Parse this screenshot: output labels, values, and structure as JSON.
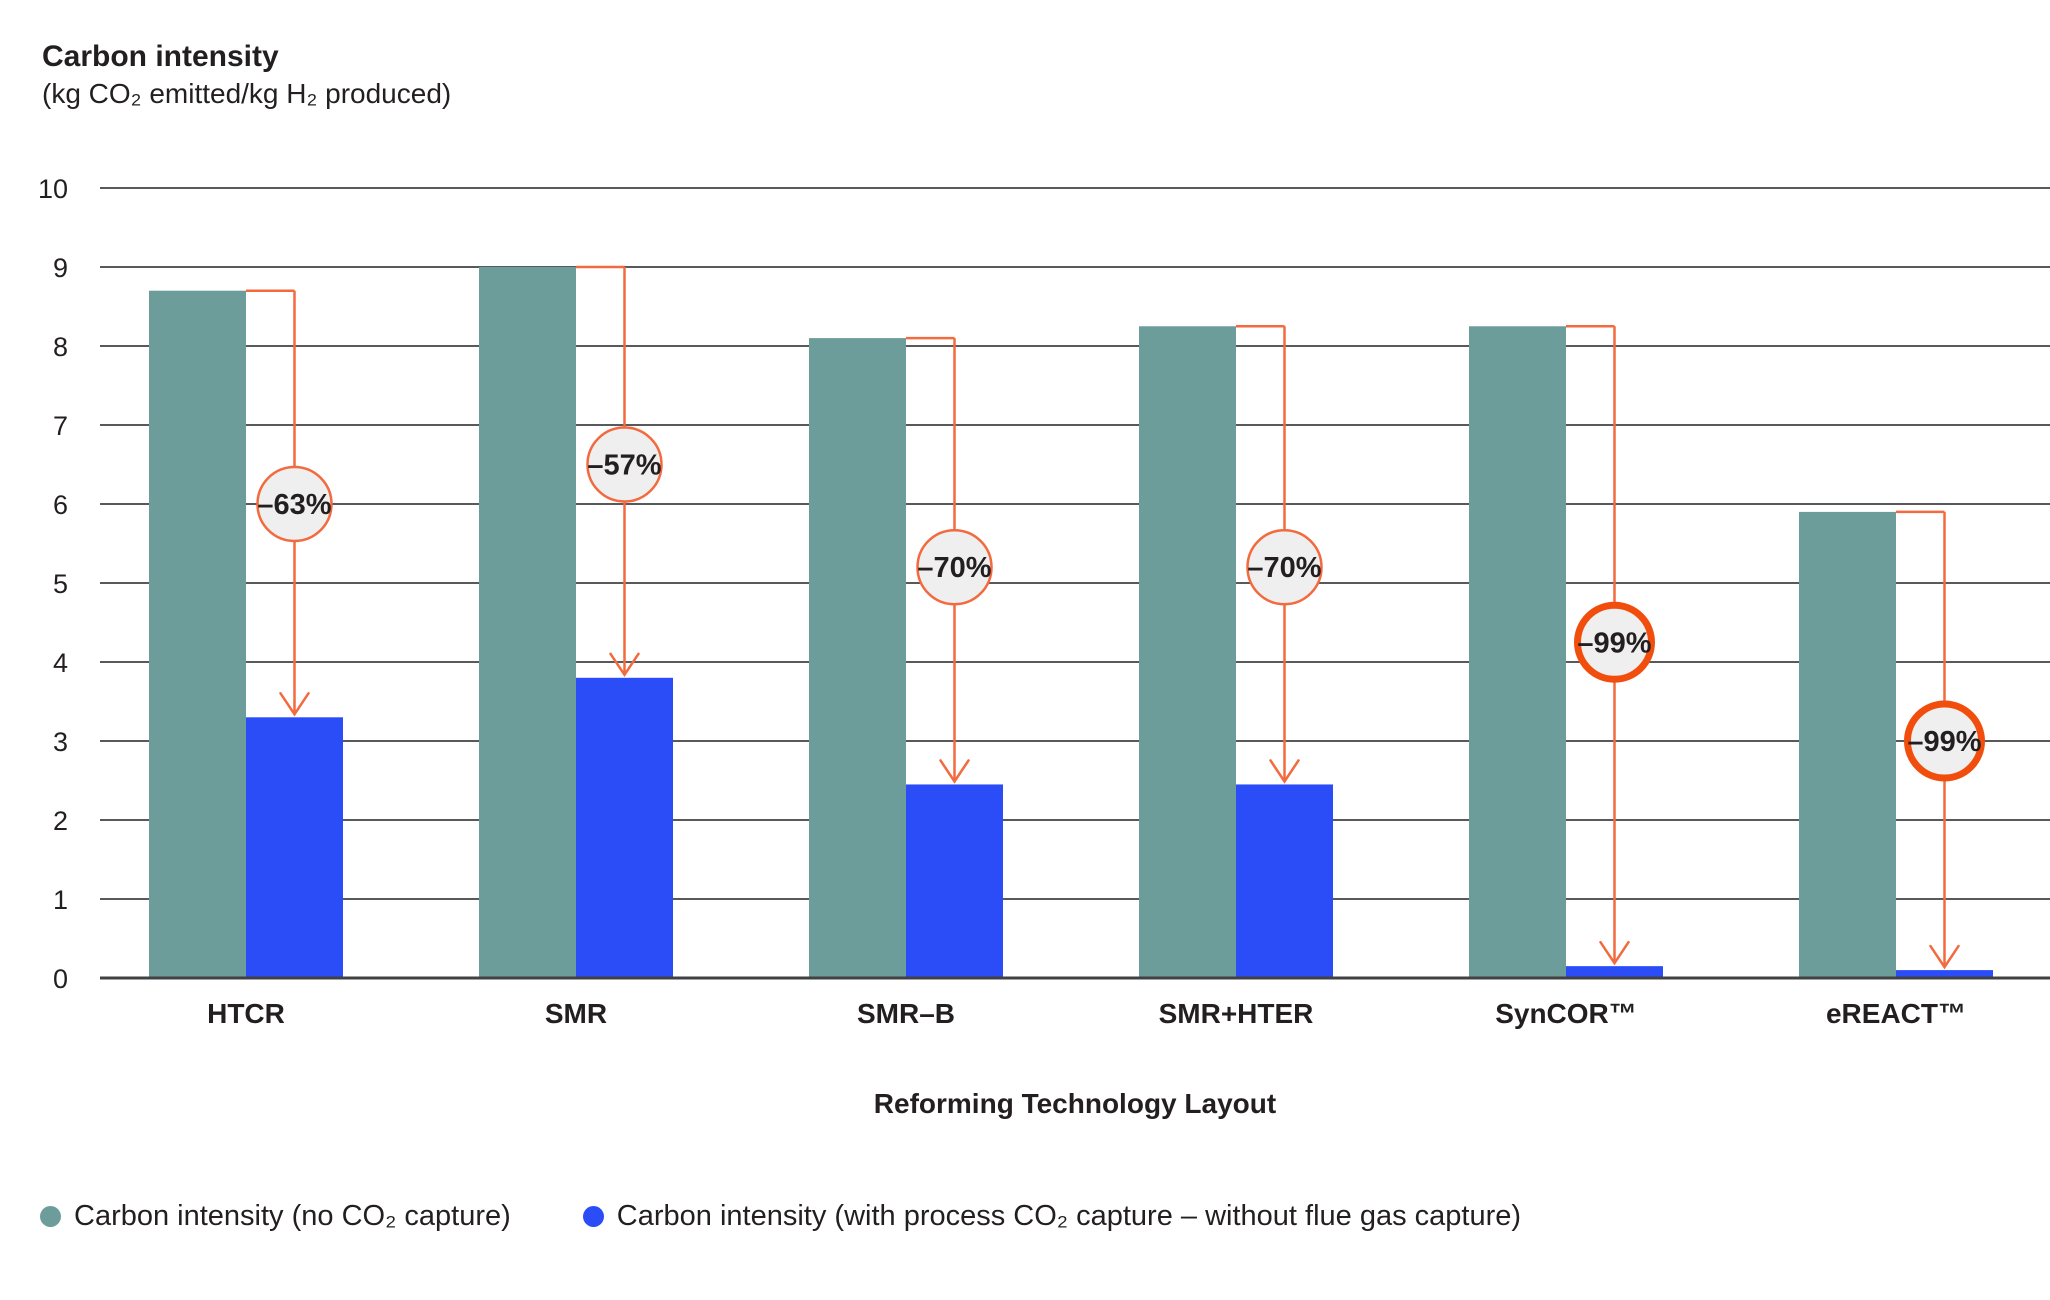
{
  "header": {
    "title": "Carbon intensity",
    "subtitle": "(kg CO₂ emitted/kg H₂ produced)"
  },
  "chart_data": {
    "type": "bar",
    "title": "Carbon intensity",
    "subtitle": "(kg CO₂ emitted/kg H₂ produced)",
    "xlabel": "Reforming Technology Layout",
    "ylabel": "kg CO₂ emitted/kg H₂ produced",
    "ylim": [
      0,
      10
    ],
    "ytick_step": 1,
    "yticks": [
      0,
      1,
      2,
      3,
      4,
      5,
      6,
      7,
      8,
      9,
      10
    ],
    "grid": true,
    "legend_position": "bottom",
    "categories": [
      "HTCR",
      "SMR",
      "SMR–B",
      "SMR+HTER",
      "SynCOR™",
      "eREACT™"
    ],
    "series": [
      {
        "name": "Carbon intensity (no CO₂ capture)",
        "color": "#6D9D9A",
        "values": [
          8.7,
          9.0,
          8.1,
          8.25,
          8.25,
          5.9
        ]
      },
      {
        "name": "Carbon intensity (with process CO₂ capture – without flue gas capture)",
        "color": "#2B4DF7",
        "values": [
          3.3,
          3.8,
          2.45,
          2.45,
          0.15,
          0.1
        ]
      }
    ],
    "annotations": [
      {
        "label": "–63%",
        "circle_y": 6.0,
        "emphasis": false
      },
      {
        "label": "–57%",
        "circle_y": 6.5,
        "emphasis": false
      },
      {
        "label": "–70%",
        "circle_y": 5.2,
        "emphasis": false
      },
      {
        "label": "–70%",
        "circle_y": 5.2,
        "emphasis": false
      },
      {
        "label": "–99%",
        "circle_y": 4.25,
        "emphasis": true
      },
      {
        "label": "–99%",
        "circle_y": 3.0,
        "emphasis": true
      }
    ]
  },
  "colors": {
    "teal_bar": "#6D9D9A",
    "blue_bar": "#2B4DF7",
    "arrow_thin_orange": "#F26A3E",
    "arrow_bold_orange": "#F14E0D",
    "circle_fill": "#EFEFEF",
    "gridline": "#58595B",
    "baseline": "#414042",
    "text": "#231F20"
  }
}
